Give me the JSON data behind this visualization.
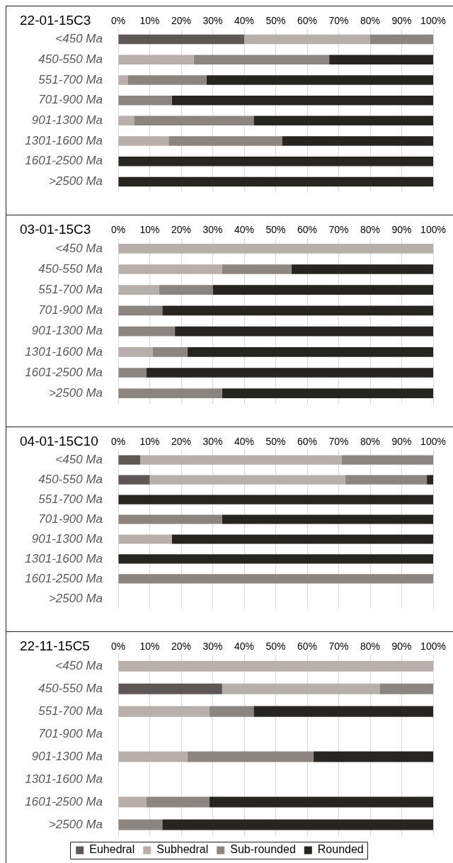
{
  "chart_data": [
    {
      "type": "bar",
      "orientation": "horizontal",
      "stacked": true,
      "title": "22-01-15C3",
      "categories": [
        "<450 Ma",
        "450-550 Ma",
        "551-700 Ma",
        "701-900 Ma",
        "901-1300 Ma",
        "1301-1600 Ma",
        "1601-2500 Ma",
        ">2500 Ma"
      ],
      "series": [
        {
          "color": "#5d5755",
          "values": [
            40,
            0,
            0,
            0,
            0,
            0,
            0,
            0
          ]
        },
        {
          "color": "#b6afac",
          "values": [
            40,
            24,
            3,
            0,
            5,
            16,
            0,
            0
          ]
        },
        {
          "color": "#8b8582",
          "values": [
            20,
            43,
            25,
            17,
            38,
            36,
            0,
            0
          ]
        },
        {
          "color": "#262521",
          "values": [
            0,
            33,
            72,
            83,
            57,
            48,
            100,
            100
          ]
        }
      ],
      "xlim": [
        0,
        100
      ],
      "xticks": [
        {
          "value": 0,
          "label": "0%"
        },
        {
          "value": 10,
          "label": "10%"
        },
        {
          "value": 20,
          "label": "20%"
        },
        {
          "value": 30,
          "label": "30%"
        },
        {
          "value": 40,
          "label": "40%"
        },
        {
          "value": 50,
          "label": "50%"
        },
        {
          "value": 60,
          "label": "60%"
        },
        {
          "value": 70,
          "label": "70%"
        },
        {
          "value": 80,
          "label": "80%"
        },
        {
          "value": 90,
          "label": "90%"
        },
        {
          "value": 100,
          "label": "100%"
        }
      ],
      "grid": "x",
      "legend": false
    },
    {
      "type": "bar",
      "orientation": "horizontal",
      "stacked": true,
      "title": "03-01-15C3",
      "categories": [
        "<450 Ma",
        "450-550 Ma",
        "551-700 Ma",
        "701-900 Ma",
        "901-1300 Ma",
        "1301-1600 Ma",
        "1601-2500 Ma",
        ">2500 Ma"
      ],
      "series": [
        {
          "color": "#5d5755",
          "values": [
            0,
            0,
            0,
            0,
            0,
            0,
            0,
            0
          ]
        },
        {
          "color": "#b6afac",
          "values": [
            100,
            33,
            13,
            0,
            0,
            11,
            0,
            0
          ]
        },
        {
          "color": "#8b8582",
          "values": [
            0,
            22,
            17,
            14,
            18,
            11,
            9,
            33
          ]
        },
        {
          "color": "#262521",
          "values": [
            0,
            45,
            70,
            86,
            82,
            78,
            91,
            67
          ]
        }
      ],
      "xlim": [
        0,
        100
      ],
      "xticks": [
        {
          "value": 0,
          "label": "0%"
        },
        {
          "value": 10,
          "label": "10%"
        },
        {
          "value": 20,
          "label": "20%"
        },
        {
          "value": 30,
          "label": "30%"
        },
        {
          "value": 40,
          "label": "40%"
        },
        {
          "value": 50,
          "label": "50%"
        },
        {
          "value": 60,
          "label": "60%"
        },
        {
          "value": 70,
          "label": "70%"
        },
        {
          "value": 80,
          "label": "80%"
        },
        {
          "value": 90,
          "label": "90%"
        },
        {
          "value": 100,
          "label": "100%"
        }
      ],
      "grid": "x",
      "legend": false
    },
    {
      "type": "bar",
      "orientation": "horizontal",
      "stacked": true,
      "title": "04-01-15C10",
      "categories": [
        "<450 Ma",
        "450-550 Ma",
        "551-700 Ma",
        "701-900 Ma",
        "901-1300 Ma",
        "1301-1600 Ma",
        "1601-2500 Ma",
        ">2500 Ma"
      ],
      "series": [
        {
          "color": "#5d5755",
          "values": [
            7,
            10,
            0,
            0,
            0,
            0,
            0,
            0
          ]
        },
        {
          "color": "#b6afac",
          "values": [
            64,
            62,
            0,
            0,
            17,
            0,
            0,
            0
          ]
        },
        {
          "color": "#8b8582",
          "values": [
            29,
            26,
            0,
            33,
            0,
            0,
            100,
            0
          ]
        },
        {
          "color": "#262521",
          "values": [
            0,
            2,
            100,
            67,
            83,
            100,
            0,
            0
          ]
        }
      ],
      "xlim": [
        0,
        100
      ],
      "xticks": [
        {
          "value": 0,
          "label": "0%"
        },
        {
          "value": 10,
          "label": "10%"
        },
        {
          "value": 20,
          "label": "20%"
        },
        {
          "value": 30,
          "label": "30%"
        },
        {
          "value": 40,
          "label": "40%"
        },
        {
          "value": 50,
          "label": "50%"
        },
        {
          "value": 60,
          "label": "60%"
        },
        {
          "value": 70,
          "label": "70%"
        },
        {
          "value": 80,
          "label": "80%"
        },
        {
          "value": 90,
          "label": "90%"
        },
        {
          "value": 100,
          "label": "100%"
        }
      ],
      "grid": "x",
      "legend": false
    },
    {
      "type": "bar",
      "orientation": "horizontal",
      "stacked": true,
      "title": "22-11-15C5",
      "categories": [
        "<450 Ma",
        "450-550 Ma",
        "551-700 Ma",
        "701-900 Ma",
        "901-1300 Ma",
        "1301-1600 Ma",
        "1601-2500 Ma",
        ">2500 Ma"
      ],
      "series": [
        {
          "name": "Euhedral",
          "color": "#5d5755",
          "values": [
            0,
            33,
            0,
            0,
            0,
            0,
            0,
            0
          ]
        },
        {
          "name": "Subhedral",
          "color": "#b6afac",
          "values": [
            100,
            50,
            29,
            0,
            22,
            0,
            9,
            0
          ]
        },
        {
          "name": "Sub-rounded",
          "color": "#8b8582",
          "values": [
            0,
            17,
            14,
            0,
            40,
            0,
            20,
            14
          ]
        },
        {
          "name": "Rounded",
          "color": "#262521",
          "values": [
            0,
            0,
            57,
            0,
            38,
            0,
            71,
            86
          ]
        }
      ],
      "xlim": [
        0,
        100
      ],
      "xticks": [
        {
          "value": 0,
          "label": "0%"
        },
        {
          "value": 10,
          "label": "10%"
        },
        {
          "value": 20,
          "label": "20%"
        },
        {
          "value": 30,
          "label": "30%"
        },
        {
          "value": 40,
          "label": "40%"
        },
        {
          "value": 50,
          "label": "50%"
        },
        {
          "value": 60,
          "label": "60%"
        },
        {
          "value": 70,
          "label": "70%"
        },
        {
          "value": 80,
          "label": "80%"
        },
        {
          "value": 90,
          "label": "90%"
        },
        {
          "value": 100,
          "label": "100%"
        }
      ],
      "grid": "x",
      "legend": "bottom"
    }
  ]
}
